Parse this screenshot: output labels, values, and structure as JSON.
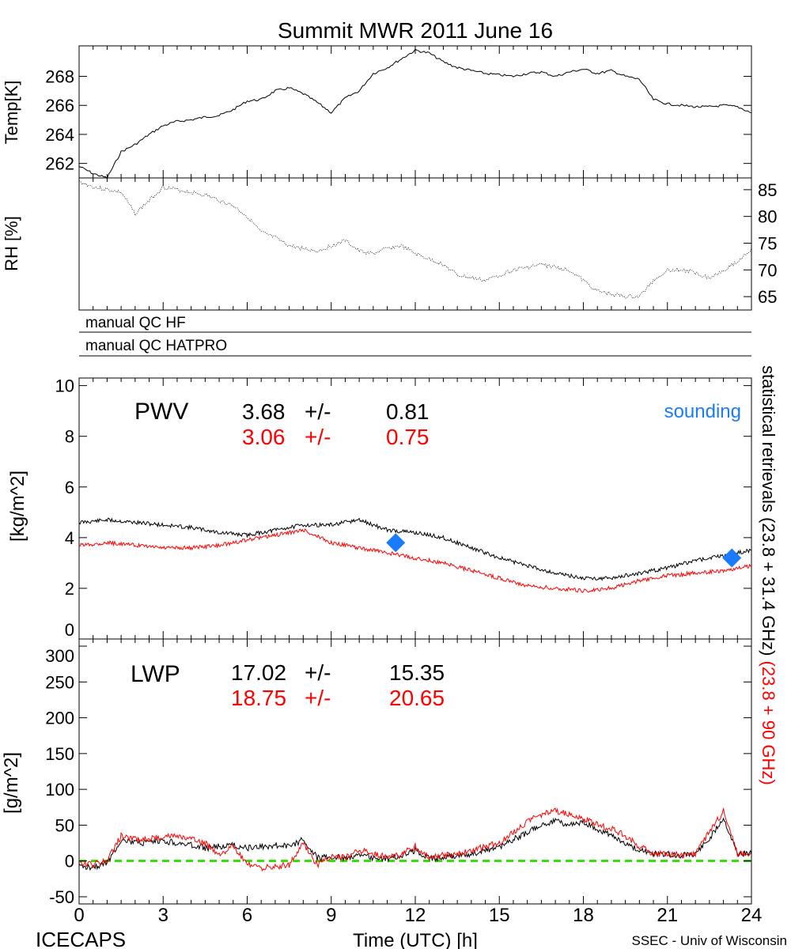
{
  "chart_data": {
    "title": "Summit MWR 2011 June 16",
    "xlabel": "Time (UTC) [h]",
    "xlim": [
      0,
      24
    ],
    "xticks": [
      "0",
      "3",
      "6",
      "9",
      "12",
      "15",
      "18",
      "21",
      "24"
    ],
    "footer_left": "ICECAPS",
    "footer_right": "SSEC - Univ of Wisconsin",
    "right_label_black": "statistical retrievals (23.8 + 31.4 GHz)",
    "right_label_red": "(23.8 + 90 GHz)",
    "colors": {
      "black": "#000000",
      "red": "#ff0000",
      "sounding": "#1a7bff",
      "zero_line": "#33dd00"
    },
    "panels": {
      "temp": {
        "type": "line",
        "ylabel": "Temp[K]",
        "ylim": [
          261,
          270.1
        ],
        "yticks": [
          "262",
          "264",
          "266",
          "268"
        ],
        "x": [
          0,
          0.5,
          1,
          1.5,
          2,
          2.5,
          3,
          3.5,
          4,
          4.5,
          5,
          5.5,
          6,
          6.5,
          7,
          7.5,
          8,
          8.5,
          9,
          9.5,
          10,
          10.5,
          11,
          11.5,
          12,
          12.5,
          13,
          13.5,
          14,
          14.5,
          15,
          15.5,
          16,
          16.5,
          17,
          17.5,
          18,
          18.5,
          19,
          19.5,
          20,
          20.5,
          21,
          21.5,
          22,
          22.5,
          23,
          23.5,
          24
        ],
        "values": [
          261.8,
          261.3,
          261.0,
          262.8,
          263.3,
          264.0,
          264.6,
          264.9,
          265.0,
          265.2,
          265.3,
          265.7,
          266.3,
          266.4,
          267.0,
          267.2,
          266.8,
          266.2,
          265.5,
          266.5,
          267.0,
          268.2,
          268.6,
          269.2,
          269.8,
          269.6,
          269.0,
          268.6,
          268.4,
          268.2,
          268.1,
          268.0,
          268.2,
          268.3,
          268.0,
          268.3,
          268.5,
          268.2,
          268.4,
          268.0,
          267.8,
          266.4,
          266.1,
          266.0,
          265.9,
          265.9,
          266.0,
          265.9,
          265.5
        ]
      },
      "rh": {
        "type": "scatter",
        "ylabel": "RH [%]",
        "ylim": [
          62.5,
          87.2
        ],
        "yticks": [
          "65",
          "70",
          "75",
          "80",
          "85"
        ],
        "x": [
          0,
          0.5,
          1,
          1.5,
          2,
          2.5,
          3,
          3.5,
          4,
          4.5,
          5,
          5.5,
          6,
          6.5,
          7,
          7.5,
          8,
          8.5,
          9,
          9.5,
          10,
          10.5,
          11,
          11.5,
          12,
          12.5,
          13,
          13.5,
          14,
          14.5,
          15,
          15.5,
          16,
          16.5,
          17,
          17.5,
          18,
          18.5,
          19,
          19.5,
          20,
          20.5,
          21,
          21.5,
          22,
          22.5,
          23,
          23.5,
          24
        ],
        "values": [
          86.5,
          85.5,
          85,
          84.5,
          80.5,
          83,
          85.5,
          85,
          84.5,
          84,
          83,
          82,
          80,
          77,
          76,
          74.5,
          74,
          73.5,
          74.5,
          75.5,
          73.5,
          73,
          74,
          74.5,
          73,
          72,
          71,
          69,
          68.5,
          68,
          69,
          70,
          70.5,
          71,
          70.5,
          70,
          68,
          66,
          65.5,
          65,
          65,
          68,
          70,
          70,
          69.5,
          68.5,
          70,
          71.5,
          74
        ]
      },
      "qc": {
        "hf_label": "manual QC HF",
        "hatpro_label": "manual QC HATPRO"
      },
      "pwv": {
        "type": "line",
        "ylabel": "[kg/m^2]",
        "label": "PWV",
        "ylim": [
          0,
          10.3
        ],
        "yticks": [
          "0",
          "2",
          "4",
          "6",
          "8",
          "10"
        ],
        "stats_black": {
          "mean": "3.68",
          "pm": "+/-",
          "sd": "0.81"
        },
        "stats_red": {
          "mean": "3.06",
          "pm": "+/-",
          "sd": "0.75"
        },
        "sounding_label": "sounding",
        "x": [
          0,
          1,
          2,
          3,
          4,
          5,
          6,
          7,
          8,
          9,
          10,
          11,
          12,
          13,
          14,
          15,
          16,
          17,
          18,
          19,
          20,
          21,
          22,
          23,
          24
        ],
        "series": [
          {
            "name": "23.8 + 31.4 GHz",
            "color": "black",
            "values": [
              4.6,
              4.7,
              4.6,
              4.5,
              4.4,
              4.2,
              4.1,
              4.3,
              4.5,
              4.5,
              4.7,
              4.3,
              4.2,
              4.0,
              3.6,
              3.2,
              2.9,
              2.6,
              2.4,
              2.4,
              2.6,
              2.8,
              3.1,
              3.3,
              3.5
            ]
          },
          {
            "name": "23.8 + 90 GHz",
            "color": "red",
            "values": [
              3.7,
              3.8,
              3.7,
              3.6,
              3.6,
              3.7,
              3.9,
              4.1,
              4.3,
              3.8,
              3.6,
              3.4,
              3.2,
              3.0,
              2.7,
              2.4,
              2.1,
              2.0,
              1.9,
              2.0,
              2.3,
              2.5,
              2.6,
              2.7,
              2.9
            ]
          }
        ],
        "sounding": [
          {
            "x": 11.3,
            "y": 3.8
          },
          {
            "x": 23.3,
            "y": 3.2
          }
        ]
      },
      "lwp": {
        "type": "line",
        "ylabel": "[g/m^2]",
        "label": "LWP",
        "ylim": [
          -60,
          310
        ],
        "yticks": [
          "-50",
          "0",
          "50",
          "100",
          "150",
          "200",
          "250",
          "300"
        ],
        "stats_black": {
          "mean": "17.02",
          "pm": "+/-",
          "sd": "15.35"
        },
        "stats_red": {
          "mean": "18.75",
          "pm": "+/-",
          "sd": "20.65"
        },
        "x": [
          0,
          0.5,
          1,
          1.5,
          2,
          2.5,
          3,
          3.5,
          4,
          4.5,
          5,
          5.5,
          6,
          6.5,
          7,
          7.5,
          8,
          8.5,
          9,
          9.5,
          10,
          10.5,
          11,
          11.5,
          12,
          12.5,
          13,
          13.5,
          14,
          14.5,
          15,
          15.5,
          16,
          16.5,
          17,
          17.5,
          18,
          18.5,
          19,
          19.5,
          20,
          20.5,
          21,
          21.5,
          22,
          22.5,
          23,
          23.5,
          24
        ],
        "series": [
          {
            "name": "23.8 + 31.4 GHz",
            "color": "black",
            "values": [
              -8,
              -8,
              -3,
              30,
              25,
              25,
              28,
              25,
              22,
              18,
              20,
              22,
              18,
              20,
              22,
              20,
              30,
              5,
              5,
              5,
              8,
              5,
              3,
              8,
              15,
              3,
              5,
              8,
              10,
              15,
              20,
              30,
              40,
              50,
              55,
              50,
              55,
              45,
              35,
              25,
              15,
              10,
              10,
              8,
              10,
              30,
              60,
              10,
              10
            ]
          },
          {
            "name": "23.8 + 90 GHz",
            "color": "red",
            "values": [
              -5,
              -5,
              0,
              35,
              30,
              30,
              35,
              35,
              30,
              25,
              10,
              20,
              -5,
              -10,
              -8,
              -5,
              25,
              -5,
              5,
              5,
              15,
              10,
              5,
              10,
              20,
              5,
              8,
              10,
              15,
              20,
              25,
              40,
              55,
              65,
              70,
              65,
              60,
              50,
              45,
              35,
              20,
              10,
              10,
              8,
              10,
              40,
              70,
              10,
              10
            ]
          }
        ],
        "zero_line": 0
      }
    }
  }
}
